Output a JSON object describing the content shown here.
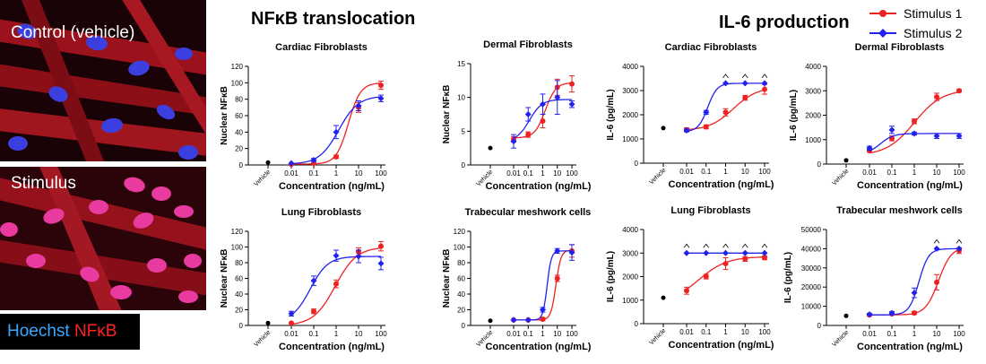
{
  "micrographs": [
    {
      "label": "Control (vehicle)"
    },
    {
      "label": "Stimulus"
    }
  ],
  "stain_legend": {
    "hoechst": "Hoechst",
    "nfkb": "NFκB"
  },
  "section_titles": {
    "nfkb": "NFκB translocation",
    "il6": "IL-6 production"
  },
  "legend": {
    "series1": {
      "name": "Stimulus 1",
      "color": "#ee2222"
    },
    "series2": {
      "name": "Stimulus 2",
      "color": "#2222ee"
    }
  },
  "chart_data": [
    {
      "type": "line",
      "title": "Cardiac Fibroblasts",
      "xlabel": "Concentration (ng/mL)",
      "ylabel": "Nuclear NFκB",
      "x_ticks": [
        "0.01",
        "0.1",
        "1",
        "10",
        "100"
      ],
      "vehicle_label": "Vehicle",
      "ylim": [
        0,
        120
      ],
      "y_ticks": [
        0,
        20,
        40,
        60,
        80,
        100,
        120
      ],
      "vehicle": 3,
      "series": [
        {
          "name": "Stimulus 1",
          "x": [
            0.01,
            0.1,
            1,
            10,
            100
          ],
          "y": [
            1,
            2,
            10,
            70,
            97
          ],
          "err": [
            0,
            0,
            2,
            6,
            5
          ],
          "fit": {
            "bottom": 1,
            "top": 100,
            "ec50": 3.5,
            "hill": 1.6
          }
        },
        {
          "name": "Stimulus 2",
          "x": [
            0.01,
            0.1,
            1,
            10,
            100
          ],
          "y": [
            2,
            6,
            40,
            72,
            81
          ],
          "err": [
            0,
            2,
            8,
            6,
            4
          ],
          "fit": {
            "bottom": 1,
            "top": 84,
            "ec50": 1.3,
            "hill": 1.0
          }
        }
      ]
    },
    {
      "type": "line",
      "title": "Dermal Fibroblasts",
      "xlabel": "Concentration (ng/mL)",
      "ylabel": "Nuclear NFκB",
      "x_ticks": [
        "0.01",
        "0.1",
        "1",
        "10",
        "100"
      ],
      "vehicle_label": "Vehicle",
      "ylim": [
        0,
        15
      ],
      "y_ticks": [
        0,
        5,
        10,
        15
      ],
      "vehicle": 2.5,
      "series": [
        {
          "name": "Stimulus 1",
          "x": [
            0.01,
            0.1,
            1,
            10,
            100
          ],
          "y": [
            3.8,
            4.5,
            6.5,
            11.5,
            12
          ],
          "err": [
            0.4,
            0.4,
            1,
            1.2,
            1.2
          ],
          "fit": {
            "bottom": 4,
            "top": 12.2,
            "ec50": 1.5,
            "hill": 1.2
          }
        },
        {
          "name": "Stimulus 2",
          "x": [
            0.01,
            0.1,
            1,
            10,
            100
          ],
          "y": [
            3.5,
            7.5,
            9,
            10,
            9
          ],
          "err": [
            1,
            1,
            1.5,
            2.5,
            0.5
          ],
          "fit": {
            "bottom": 3.5,
            "top": 9.7,
            "ec50": 0.12,
            "hill": 1.0
          }
        }
      ]
    },
    {
      "type": "line",
      "title": "Cardiac Fibroblasts",
      "xlabel": "Concentration (ng/mL)",
      "ylabel": "IL-6 (pg/mL)",
      "x_ticks": [
        "0.01",
        "0.1",
        "1",
        "10",
        "100"
      ],
      "vehicle_label": "Vehicle",
      "ylim": [
        0,
        4000
      ],
      "y_ticks": [
        0,
        1000,
        2000,
        3000,
        4000
      ],
      "vehicle": 1450,
      "caret_marks": [
        1,
        10,
        100
      ],
      "series": [
        {
          "name": "Stimulus 1",
          "x": [
            0.01,
            0.1,
            1,
            10,
            100
          ],
          "y": [
            1380,
            1500,
            2100,
            2700,
            3050
          ],
          "err": [
            80,
            80,
            150,
            100,
            200
          ],
          "fit": {
            "bottom": 1350,
            "top": 3150,
            "ec50": 2.5,
            "hill": 0.7
          }
        },
        {
          "name": "Stimulus 2",
          "x": [
            0.01,
            0.1,
            1,
            10,
            100
          ],
          "y": [
            1350,
            2100,
            3300,
            3300,
            3300
          ],
          "err": [
            60,
            80,
            0,
            0,
            0
          ],
          "fit": {
            "bottom": 1300,
            "top": 3300,
            "ec50": 0.12,
            "hill": 1.8
          }
        }
      ]
    },
    {
      "type": "line",
      "title": "Dermal Fibroblasts",
      "xlabel": "Concentration (ng/mL)",
      "ylabel": "IL-6 (pg/mL)",
      "x_ticks": [
        "0.01",
        "0.1",
        "1",
        "10",
        "100"
      ],
      "vehicle_label": "Vehicle",
      "ylim": [
        0,
        4000
      ],
      "y_ticks": [
        0,
        1000,
        2000,
        3000,
        4000
      ],
      "vehicle": 150,
      "series": [
        {
          "name": "Stimulus 1",
          "x": [
            0.01,
            0.1,
            1,
            10,
            100
          ],
          "y": [
            550,
            1050,
            1750,
            2750,
            3000
          ],
          "err": [
            60,
            100,
            100,
            150,
            50
          ],
          "fit": {
            "bottom": 350,
            "top": 3050,
            "ec50": 1.0,
            "hill": 0.7
          }
        },
        {
          "name": "Stimulus 2",
          "x": [
            0.01,
            0.1,
            1,
            10,
            100
          ],
          "y": [
            650,
            1400,
            1250,
            1150,
            1150
          ],
          "err": [
            80,
            150,
            60,
            100,
            100
          ],
          "fit": {
            "bottom": 400,
            "top": 1250,
            "ec50": 0.03,
            "hill": 1.5
          }
        }
      ]
    },
    {
      "type": "line",
      "title": "Lung Fibroblasts",
      "xlabel": "Concentration (ng/mL)",
      "ylabel": "Nuclear NFκB",
      "x_ticks": [
        "0.01",
        "0.1",
        "1",
        "10",
        "100"
      ],
      "vehicle_label": "Vehicle",
      "ylim": [
        0,
        120
      ],
      "y_ticks": [
        0,
        20,
        40,
        60,
        80,
        100,
        120
      ],
      "vehicle": 3,
      "series": [
        {
          "name": "Stimulus 1",
          "x": [
            0.01,
            0.1,
            1,
            10,
            100
          ],
          "y": [
            3,
            18,
            53,
            94,
            101
          ],
          "err": [
            0,
            3,
            5,
            5,
            6
          ],
          "fit": {
            "bottom": 0,
            "top": 100,
            "ec50": 0.9,
            "hill": 0.9
          }
        },
        {
          "name": "Stimulus 2",
          "x": [
            0.01,
            0.1,
            1,
            10,
            100
          ],
          "y": [
            15,
            57,
            89,
            88,
            79
          ],
          "err": [
            3,
            6,
            7,
            8,
            8
          ],
          "fit": {
            "bottom": 5,
            "top": 88,
            "ec50": 0.07,
            "hill": 1.1
          }
        }
      ]
    },
    {
      "type": "line",
      "title": "Trabecular meshwork cells",
      "xlabel": "Concentration (ng/mL)",
      "ylabel": "Nuclear NFκB",
      "x_ticks": [
        "0.01",
        "0.1",
        "1",
        "10",
        "100"
      ],
      "vehicle_label": "Vehicle",
      "ylim": [
        0,
        120
      ],
      "y_ticks": [
        0,
        20,
        40,
        60,
        80,
        100,
        120
      ],
      "vehicle": 6,
      "series": [
        {
          "name": "Stimulus 1",
          "x": [
            0.01,
            0.1,
            1,
            10,
            100
          ],
          "y": [
            7,
            7,
            8,
            60,
            95
          ],
          "err": [
            0,
            0,
            2,
            4,
            8
          ],
          "fit": {
            "bottom": 7,
            "top": 96,
            "ec50": 8,
            "hill": 2.5
          }
        },
        {
          "name": "Stimulus 2",
          "x": [
            0.01,
            0.1,
            1,
            10,
            100
          ],
          "y": [
            7,
            7,
            20,
            95,
            93
          ],
          "err": [
            0,
            0,
            3,
            3,
            10
          ],
          "fit": {
            "bottom": 7,
            "top": 95,
            "ec50": 2.0,
            "hill": 3.0
          }
        }
      ]
    },
    {
      "type": "line",
      "title": "Lung Fibroblasts",
      "xlabel": "Concentration (ng/mL)",
      "ylabel": "IL-6 (pg/mL)",
      "x_ticks": [
        "0.01",
        "0.1",
        "1",
        "10",
        "100"
      ],
      "vehicle_label": "Vehicle",
      "ylim": [
        0,
        4000
      ],
      "y_ticks": [
        0,
        1000,
        2000,
        3000,
        4000
      ],
      "vehicle": 1100,
      "caret_marks": [
        0.01,
        0.1,
        1,
        10,
        100
      ],
      "series": [
        {
          "name": "Stimulus 1",
          "x": [
            0.01,
            0.1,
            1,
            10,
            100
          ],
          "y": [
            1400,
            2000,
            2550,
            2750,
            2800
          ],
          "err": [
            150,
            100,
            250,
            100,
            80
          ],
          "fit": {
            "bottom": 850,
            "top": 2850,
            "ec50": 0.04,
            "hill": 0.6
          }
        },
        {
          "name": "Stimulus 2",
          "x": [
            0.01,
            0.1,
            1,
            10,
            100
          ],
          "y": [
            3000,
            3000,
            3000,
            3000,
            3000
          ],
          "err": [
            0,
            0,
            0,
            0,
            0
          ],
          "fit": {
            "bottom": 3000,
            "top": 3000,
            "ec50": 1,
            "hill": 1
          }
        }
      ]
    },
    {
      "type": "line",
      "title": "Trabecular meshwork cells",
      "xlabel": "Concentration (ng/mL)",
      "ylabel": "IL-6 (pg/mL)",
      "x_ticks": [
        "0.01",
        "0.1",
        "1",
        "10",
        "100"
      ],
      "vehicle_label": "Vehicle",
      "ylim": [
        0,
        50000
      ],
      "y_ticks": [
        0,
        10000,
        20000,
        30000,
        40000,
        50000
      ],
      "vehicle": 5000,
      "caret_marks": [
        10,
        100
      ],
      "series": [
        {
          "name": "Stimulus 1",
          "x": [
            0.01,
            0.1,
            1,
            10,
            100
          ],
          "y": [
            5500,
            6000,
            6500,
            22500,
            39000
          ],
          "err": [
            500,
            500,
            800,
            4000,
            1500
          ],
          "fit": {
            "bottom": 5500,
            "top": 41000,
            "ec50": 12,
            "hill": 1.5
          }
        },
        {
          "name": "Stimulus 2",
          "x": [
            0.01,
            0.1,
            1,
            10,
            100
          ],
          "y": [
            5800,
            6500,
            17000,
            40000,
            40000
          ],
          "err": [
            500,
            800,
            2500,
            0,
            0
          ],
          "fit": {
            "bottom": 5500,
            "top": 40000,
            "ec50": 1.6,
            "hill": 2.0
          }
        }
      ]
    }
  ]
}
